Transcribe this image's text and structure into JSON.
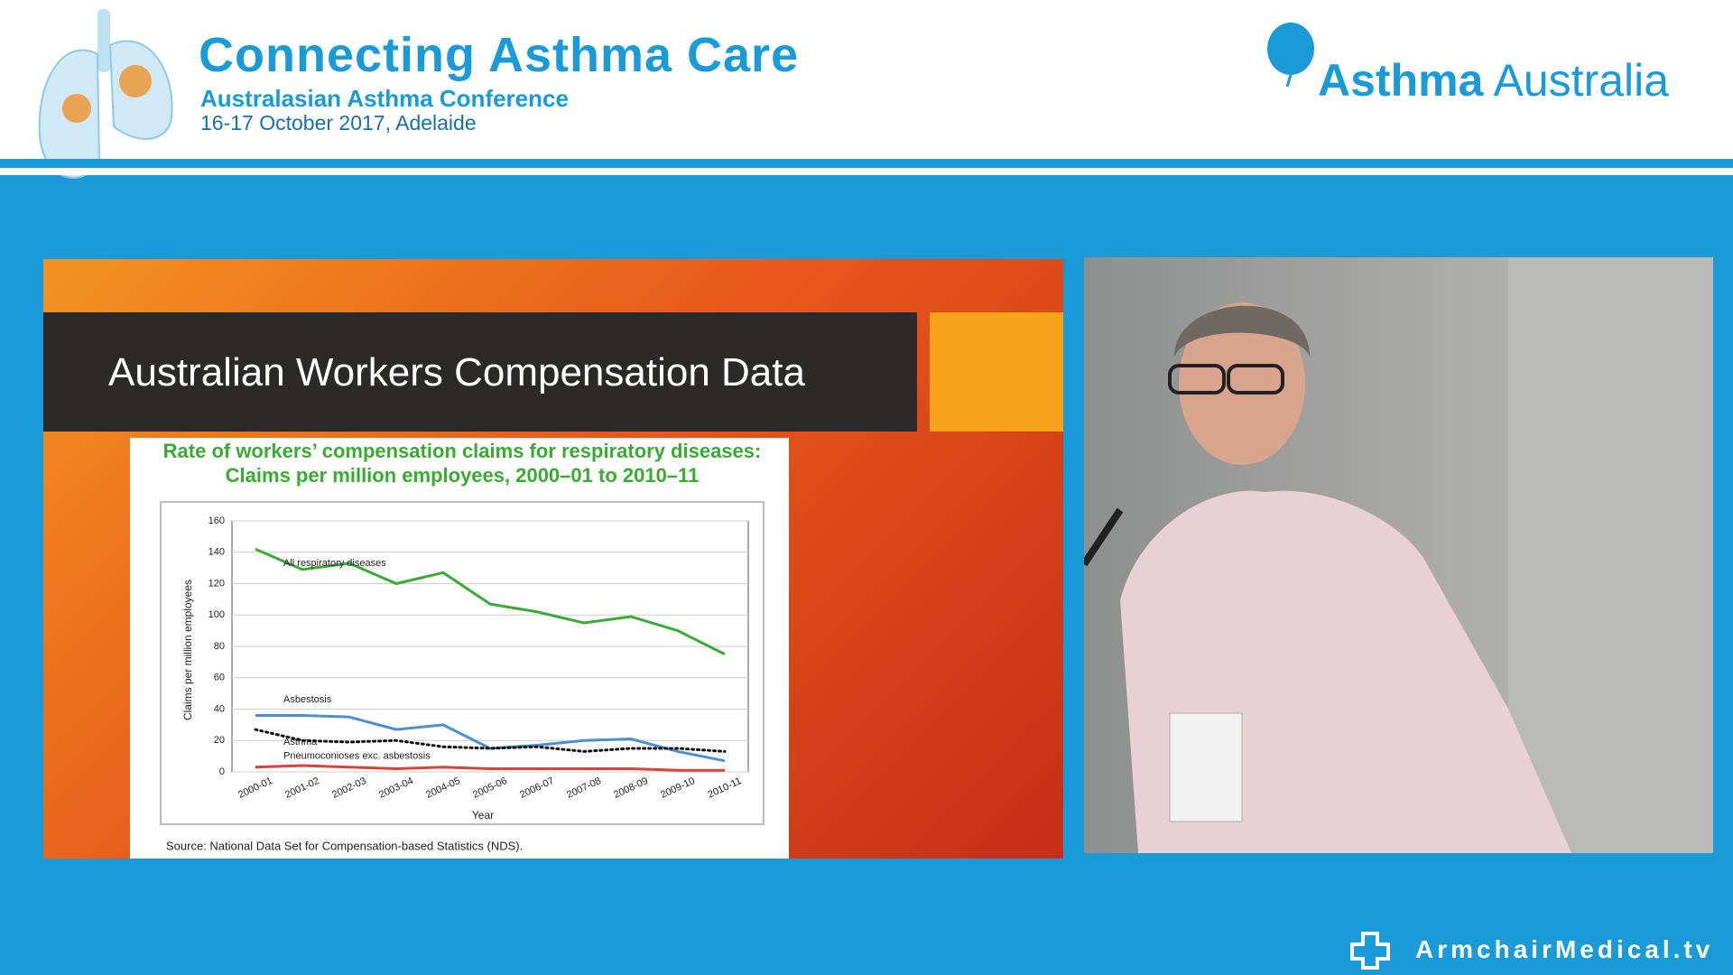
{
  "header": {
    "title": "Connecting Asthma Care",
    "subtitle": "Australasian Asthma Conference",
    "date": "16-17 October 2017, Adelaide",
    "logo_bold": "Asthma",
    "logo_light": "Australia"
  },
  "slide_title": "Australian Workers Compensation Data",
  "footer": "ArmchairMedical.tv",
  "chart_data": {
    "type": "line",
    "title": "Rate of workers’ compensation claims for respiratory diseases:",
    "subtitle": "Claims per million employees, 2000–01 to 2010–11",
    "x_label": "Year",
    "y_label": "Claims per million employees",
    "source": "Source: National Data Set for Compensation-based Statistics (NDS).",
    "categories": [
      "2000-01",
      "2001-02",
      "2002-03",
      "2003-04",
      "2004-05",
      "2005-06",
      "2006-07",
      "2007-08",
      "2008-09",
      "2009-10",
      "2010-11"
    ],
    "series": [
      {
        "name": "All respiratory diseases",
        "color": "#3aaa35",
        "style": "solid",
        "values": [
          142,
          129,
          133,
          120,
          127,
          107,
          102,
          95,
          99,
          90,
          75
        ]
      },
      {
        "name": "Asbestosis",
        "color": "#4a8fd0",
        "style": "solid",
        "values": [
          36,
          36,
          35,
          27,
          30,
          15,
          17,
          20,
          21,
          13,
          7
        ]
      },
      {
        "name": "Asthma",
        "color": "#111111",
        "style": "dotted",
        "values": [
          27,
          20,
          19,
          20,
          16,
          15,
          16,
          13,
          15,
          15,
          13
        ]
      },
      {
        "name": "Pneumoconioses exc. asbestosis",
        "color": "#d9413a",
        "style": "solid",
        "values": [
          3,
          4,
          3,
          2,
          3,
          2,
          2,
          2,
          2,
          1,
          1
        ]
      }
    ],
    "ylim": [
      0,
      160
    ],
    "yticks": [
      0,
      20,
      40,
      60,
      80,
      100,
      120,
      140,
      160
    ],
    "grid": true
  }
}
